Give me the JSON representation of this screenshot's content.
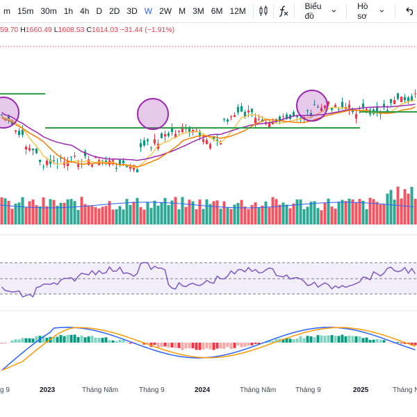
{
  "toolbar": {
    "intervals": [
      "m",
      "15m",
      "30m",
      "1h",
      "4h",
      "D",
      "2D",
      "3D",
      "W",
      "2W",
      "M",
      "3M",
      "6M",
      "12M"
    ],
    "active_interval": "W",
    "chart_type_label": "Biểu đồ",
    "profile_label": "Hồ sơ",
    "icons": [
      "candles-icon",
      "fx-icon",
      "chevron-down-icon",
      "undo-icon"
    ]
  },
  "ohlc": {
    "open_partial": "59.70",
    "h_label": "H",
    "high": "1660.49",
    "l_label": "L",
    "low": "1608.53",
    "c_label": "C",
    "close": "1614.03",
    "change": "−31.44 (−1.91%)"
  },
  "x_axis": {
    "labels": [
      "g 9",
      "2023",
      "Tháng Năm",
      "Tháng 9",
      "2024",
      "Tháng Năm",
      "Tháng 9",
      "2025",
      "Tháng Năm"
    ]
  },
  "colors": {
    "up": "#089981",
    "down": "#f23645",
    "ma_fast": "#f7c64c",
    "ma_mid": "#9c27b0",
    "ma_slow": "#f57c00",
    "support": "#2e9e44",
    "highlight": "#9c27b0",
    "rsi": "#7e57c2",
    "macd": "#2962ff",
    "signal": "#ff9800"
  },
  "chart_data": {
    "type": "candlestick",
    "interval": "W",
    "last_bar": {
      "high": 1660.49,
      "low": 1608.53,
      "close": 1614.03,
      "change": -31.44,
      "change_pct": -1.91
    },
    "panes": [
      "price",
      "volume",
      "rsi",
      "macd"
    ]
  }
}
